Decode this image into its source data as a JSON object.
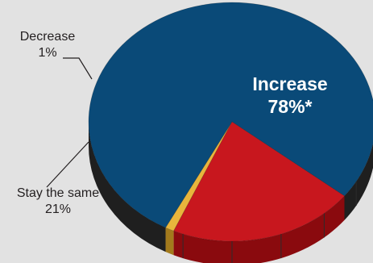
{
  "chart_data": {
    "type": "pie",
    "style": "3d",
    "slices": [
      {
        "label": "Increase",
        "value_label": "78%*",
        "value": 78,
        "color": "#0a4a78",
        "side_color": "#1f1f1f"
      },
      {
        "label": "Decrease",
        "value_label": "1%",
        "value": 1,
        "color": "#e8b53c",
        "side_color": "#a37a1c"
      },
      {
        "label": "Stay the same",
        "value_label": "21%",
        "value": 21,
        "color": "#c8171e",
        "side_color": "#8a0a0e"
      }
    ],
    "background": "#e2e2e2",
    "label_color": "#231f20",
    "leader_color": "#231f20"
  }
}
